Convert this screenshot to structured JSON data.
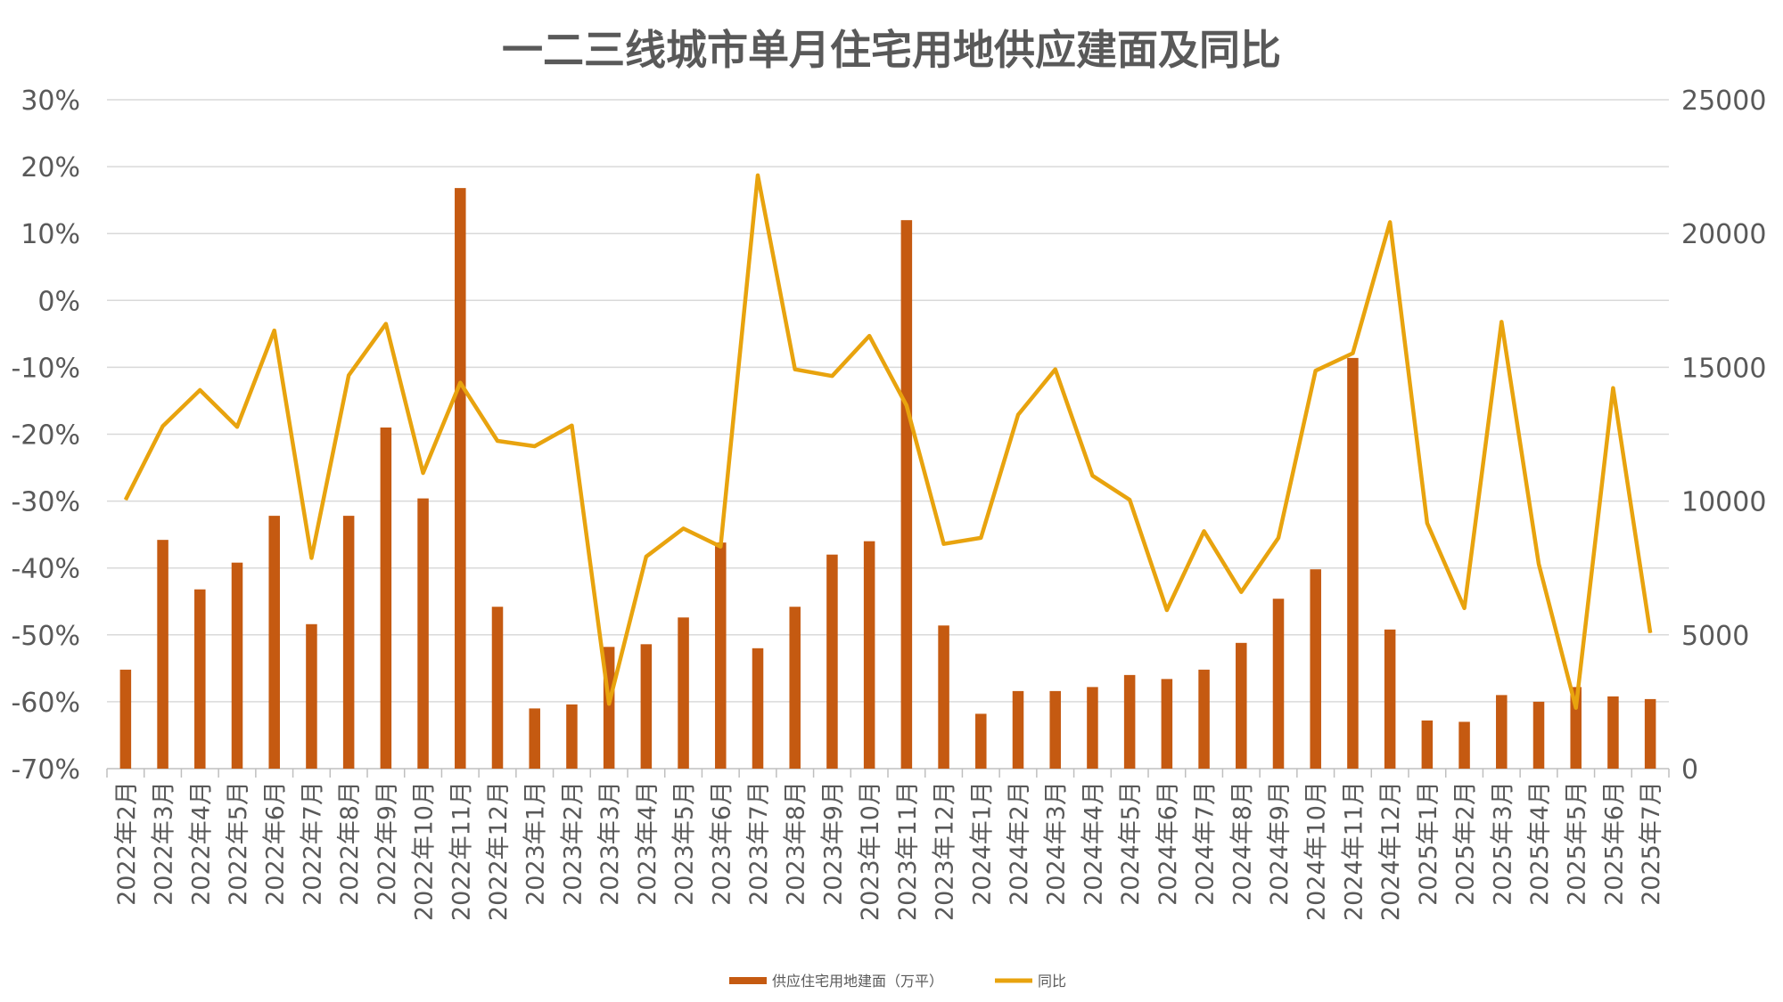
{
  "chart_data": {
    "type": "bar+line",
    "title": "一二三线城市单月住宅用地供应建面及同比",
    "categories": [
      "2022年2月",
      "2022年3月",
      "2022年4月",
      "2022年5月",
      "2022年6月",
      "2022年7月",
      "2022年8月",
      "2022年9月",
      "2022年10月",
      "2022年11月",
      "2022年12月",
      "2023年1月",
      "2023年2月",
      "2023年3月",
      "2023年4月",
      "2023年5月",
      "2023年6月",
      "2023年7月",
      "2023年8月",
      "2023年9月",
      "2023年10月",
      "2023年11月",
      "2023年12月",
      "2024年1月",
      "2024年2月",
      "2024年3月",
      "2024年4月",
      "2024年5月",
      "2024年6月",
      "2024年7月",
      "2024年8月",
      "2024年9月",
      "2024年10月",
      "2024年11月",
      "2024年12月",
      "2025年1月",
      "2025年2月",
      "2025年3月",
      "2025年4月",
      "2025年5月",
      "2025年6月",
      "2025年7月"
    ],
    "series": [
      {
        "name": "供应住宅用地建面（万平）",
        "type": "bar",
        "axis": "right",
        "color": "#C55A11",
        "values": [
          3700,
          8550,
          6700,
          7700,
          9450,
          5400,
          9450,
          12750,
          10100,
          21700,
          6050,
          2250,
          2400,
          4550,
          4650,
          5650,
          8450,
          4500,
          6050,
          8000,
          8500,
          20500,
          5350,
          2050,
          2900,
          2900,
          3050,
          3500,
          3350,
          3700,
          4700,
          6350,
          7450,
          15350,
          5200,
          1800,
          1750,
          2750,
          2500,
          3050,
          2700,
          2600
        ]
      },
      {
        "name": "同比",
        "type": "line",
        "axis": "left",
        "color": "#E8A30E",
        "values": [
          -29.8,
          -18.8,
          -13.4,
          -18.9,
          -4.5,
          -38.5,
          -11.2,
          -3.5,
          -25.8,
          -12.3,
          -21.0,
          -21.8,
          -18.7,
          -60.3,
          -38.3,
          -34.1,
          -36.8,
          18.7,
          -10.3,
          -11.3,
          -5.3,
          -15.7,
          -36.4,
          -35.5,
          -17.1,
          -10.3,
          -26.2,
          -29.8,
          -46.3,
          -34.5,
          -43.6,
          -35.5,
          -10.5,
          -7.9,
          11.7,
          -33.3,
          -46.0,
          -3.2,
          -39.4,
          -60.9,
          -13.1,
          -49.7
        ]
      }
    ],
    "y_left": {
      "min": -70,
      "max": 30,
      "step": 10,
      "tick_suffix": "%"
    },
    "y_right": {
      "min": 0,
      "max": 25000,
      "step": 5000
    },
    "grid": true,
    "legend_position": "bottom"
  }
}
